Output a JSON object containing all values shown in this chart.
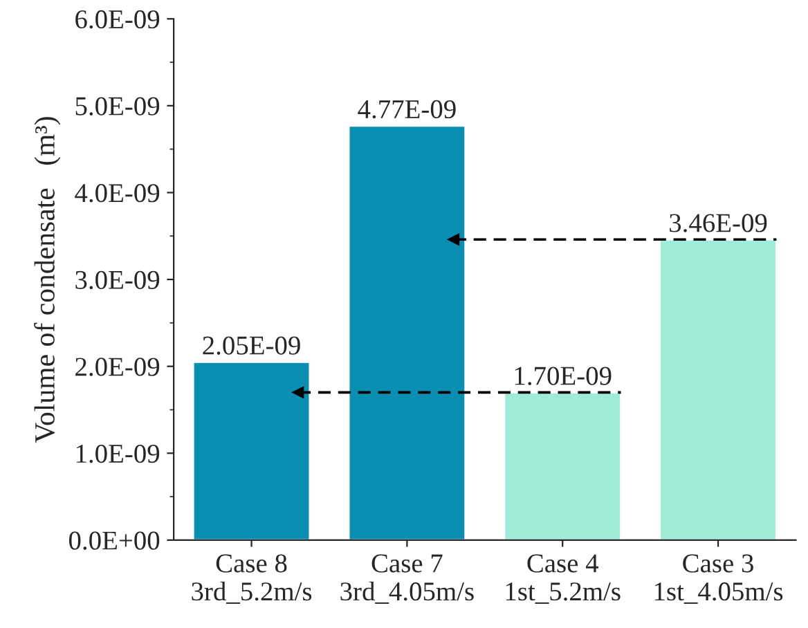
{
  "chart_data": {
    "type": "bar",
    "ylabel": "Volume of condensate   (m³)",
    "categories": [
      "Case 8\n3rd_5.2m/s",
      "Case 7\n3rd_4.05m/s",
      "Case 4\n1st_5.2m/s",
      "Case 3\n1st_4.05m/s"
    ],
    "values": [
      2.05e-09,
      4.77e-09,
      1.7e-09,
      3.46e-09
    ],
    "colors": [
      "#0a8fb3",
      "#0a8fb3",
      "#9eecd8",
      "#9eecd8"
    ],
    "value_labels": [
      "2.05E-09",
      "4.77E-09",
      "1.70E-09",
      "3.46E-09"
    ],
    "ylim": [
      0,
      6e-09
    ],
    "yticks": [
      {
        "value": 0,
        "label": "0.0E+00"
      },
      {
        "value": 1e-09,
        "label": "1.0E-09"
      },
      {
        "value": 2e-09,
        "label": "2.0E-09"
      },
      {
        "value": 3e-09,
        "label": "3.0E-09"
      },
      {
        "value": 4e-09,
        "label": "4.0E-09"
      },
      {
        "value": 5e-09,
        "label": "5.0E-09"
      },
      {
        "value": 6e-09,
        "label": "6.0E-09"
      }
    ],
    "ref_lines": [
      {
        "axis": "y",
        "value": 3.46e-09,
        "color": "#000000",
        "line_style": "dashed"
      },
      {
        "axis": "y",
        "value": 1.7e-09,
        "color": "#000000",
        "line_style": "dashed"
      }
    ],
    "grid": false,
    "legend": false
  }
}
